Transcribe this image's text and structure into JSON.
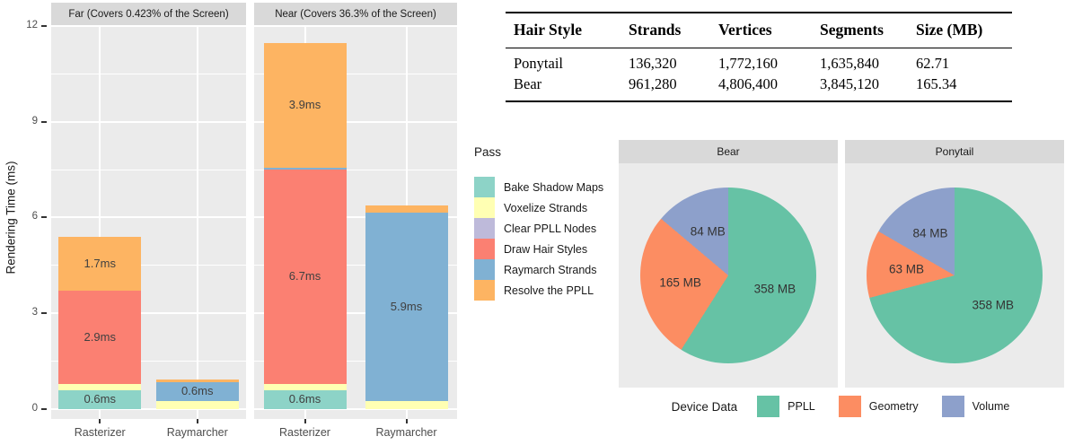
{
  "colors": {
    "panel_bg": "#EBEBEB",
    "strip_bg": "#D9D9D9",
    "grid": "#FFFFFF",
    "axis_text": "#4D4D4D",
    "label_text": "#404040"
  },
  "chart_data": [
    {
      "type": "bar",
      "title": "",
      "xlabel": "",
      "ylabel": "Rendering Time (ms)",
      "ylim": [
        0,
        12
      ],
      "yticks": [
        0,
        3,
        6,
        9,
        12
      ],
      "grid": "on",
      "series_colors": {
        "Bake Shadow Maps": "#8DD3C7",
        "Voxelize Strands": "#FFFFB3",
        "Clear PPLL Nodes": "#BEBADA",
        "Draw Hair Styles": "#FB8072",
        "Raymarch Strands": "#80B1D3",
        "Resolve the PPLL": "#FDB462"
      },
      "legend": {
        "title": "Pass",
        "position": "right",
        "entries": [
          {
            "label": "Bake Shadow Maps",
            "color": "#8DD3C7"
          },
          {
            "label": "Voxelize Strands",
            "color": "#FFFFB3"
          },
          {
            "label": "Clear PPLL Nodes",
            "color": "#BEBADA"
          },
          {
            "label": "Draw Hair Styles",
            "color": "#FB8072"
          },
          {
            "label": "Raymarch Strands",
            "color": "#80B1D3"
          },
          {
            "label": "Resolve the PPLL",
            "color": "#FDB462"
          }
        ]
      },
      "facets": [
        {
          "label": "Far (Covers 0.423% of the Screen)",
          "categories": [
            "Rasterizer",
            "Raymarcher"
          ],
          "bars": [
            {
              "category": "Rasterizer",
              "segments": [
                {
                  "pass": "Bake Shadow Maps",
                  "value": 0.6,
                  "label": "0.6ms"
                },
                {
                  "pass": "Voxelize Strands",
                  "value": 0.2,
                  "label": ""
                },
                {
                  "pass": "Draw Hair Styles",
                  "value": 2.9,
                  "label": "2.9ms"
                },
                {
                  "pass": "Resolve the PPLL",
                  "value": 1.7,
                  "label": "1.7ms"
                }
              ]
            },
            {
              "category": "Raymarcher",
              "segments": [
                {
                  "pass": "Voxelize Strands",
                  "value": 0.25,
                  "label": ""
                },
                {
                  "pass": "Raymarch Strands",
                  "value": 0.6,
                  "label": "0.6ms"
                },
                {
                  "pass": "Resolve the PPLL",
                  "value": 0.07,
                  "label": ""
                }
              ]
            }
          ]
        },
        {
          "label": "Near (Covers 36.3% of the Screen)",
          "categories": [
            "Rasterizer",
            "Raymarcher"
          ],
          "bars": [
            {
              "category": "Rasterizer",
              "segments": [
                {
                  "pass": "Bake Shadow Maps",
                  "value": 0.6,
                  "label": "0.6ms"
                },
                {
                  "pass": "Voxelize Strands",
                  "value": 0.2,
                  "label": ""
                },
                {
                  "pass": "Draw Hair Styles",
                  "value": 6.7,
                  "label": "6.7ms"
                },
                {
                  "pass": "Raymarch Strands",
                  "value": 0.06,
                  "label": ""
                },
                {
                  "pass": "Resolve the PPLL",
                  "value": 3.9,
                  "label": "3.9ms"
                }
              ]
            },
            {
              "category": "Raymarcher",
              "segments": [
                {
                  "pass": "Voxelize Strands",
                  "value": 0.25,
                  "label": ""
                },
                {
                  "pass": "Raymarch Strands",
                  "value": 5.9,
                  "label": "5.9ms"
                },
                {
                  "pass": "Resolve the PPLL",
                  "value": 0.22,
                  "label": ""
                }
              ]
            }
          ]
        }
      ]
    },
    {
      "type": "pie",
      "title": "",
      "slice_colors": {
        "PPLL": "#66C2A5",
        "Geometry": "#FC8D62",
        "Volume": "#8DA0CB"
      },
      "legend": {
        "title": "Device Data",
        "position": "bottom",
        "entries": [
          {
            "label": "PPLL",
            "color": "#66C2A5"
          },
          {
            "label": "Geometry",
            "color": "#FC8D62"
          },
          {
            "label": "Volume",
            "color": "#8DA0CB"
          }
        ]
      },
      "facets": [
        {
          "label": "Bear",
          "slices": [
            {
              "name": "PPLL",
              "value": 358,
              "label": "358 MB"
            },
            {
              "name": "Geometry",
              "value": 165,
              "label": "165 MB"
            },
            {
              "name": "Volume",
              "value": 84,
              "label": "84 MB"
            }
          ]
        },
        {
          "label": "Ponytail",
          "slices": [
            {
              "name": "PPLL",
              "value": 358,
              "label": "358 MB"
            },
            {
              "name": "Geometry",
              "value": 63,
              "label": "63 MB"
            },
            {
              "name": "Volume",
              "value": 84,
              "label": "84 MB"
            }
          ]
        }
      ]
    }
  ],
  "table": {
    "headers": [
      "Hair Style",
      "Strands",
      "Vertices",
      "Segments",
      "Size (MB)"
    ],
    "rows": [
      [
        "Ponytail",
        "136,320",
        "1,772,160",
        "1,635,840",
        "62.71"
      ],
      [
        "Bear",
        "961,280",
        "4,806,400",
        "3,845,120",
        "165.34"
      ]
    ]
  }
}
